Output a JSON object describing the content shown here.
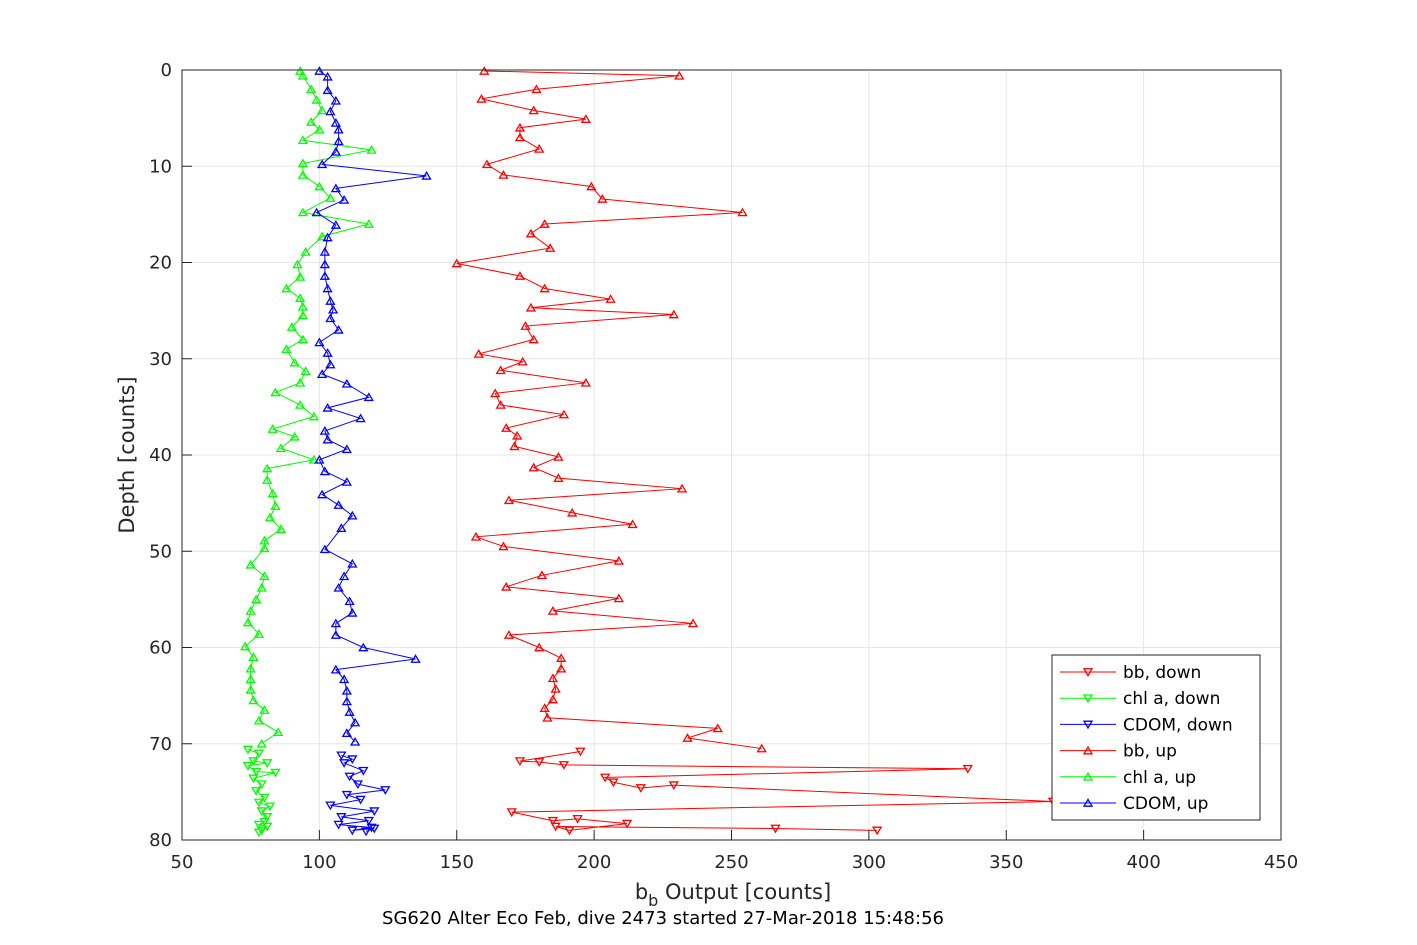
{
  "chart_data": {
    "type": "line",
    "title": "SG620 Alter Eco Feb, dive 2473 started 27-Mar-2018 15:48:56",
    "xlabel_main": "b",
    "xlabel_sub": "b",
    "xlabel_rest": " Output [counts]",
    "ylabel": "Depth [counts]",
    "xlim": [
      50,
      450
    ],
    "ylim": [
      0,
      80
    ],
    "y_reversed": true,
    "grid": true,
    "x_ticks": [
      "50",
      "100",
      "150",
      "200",
      "250",
      "300",
      "350",
      "400",
      "450"
    ],
    "y_ticks": [
      "0",
      "10",
      "20",
      "30",
      "40",
      "50",
      "60",
      "70",
      "80"
    ],
    "legend_position": "lower-right",
    "series": [
      {
        "name": "bb, down",
        "color": "#ff0000",
        "marker": "triangle-down",
        "points": [
          [
            195,
            70.8
          ],
          [
            173,
            71.8
          ],
          [
            180,
            71.9
          ],
          [
            189,
            72.2
          ],
          [
            336,
            72.6
          ],
          [
            204,
            73.5
          ],
          [
            207,
            74.0
          ],
          [
            217,
            74.6
          ],
          [
            229,
            74.3
          ],
          [
            367,
            76.0
          ],
          [
            170,
            77.1
          ],
          [
            185,
            78.0
          ],
          [
            194,
            77.8
          ],
          [
            212,
            78.3
          ],
          [
            191,
            79.0
          ],
          [
            186,
            78.6
          ],
          [
            266,
            78.8
          ],
          [
            303,
            79.0
          ]
        ]
      },
      {
        "name": "chl a, down",
        "color": "#00ff00",
        "marker": "triangle-down",
        "points": [
          [
            74,
            70.6
          ],
          [
            78,
            71.0
          ],
          [
            76,
            71.8
          ],
          [
            81,
            72.0
          ],
          [
            74,
            72.3
          ],
          [
            77,
            72.9
          ],
          [
            84,
            73.0
          ],
          [
            76,
            73.6
          ],
          [
            79,
            74.2
          ],
          [
            77,
            74.9
          ],
          [
            80,
            75.6
          ],
          [
            78,
            76.1
          ],
          [
            82,
            76.5
          ],
          [
            79,
            77.0
          ],
          [
            81,
            77.6
          ],
          [
            80,
            78.1
          ],
          [
            78,
            78.4
          ],
          [
            81,
            78.6
          ],
          [
            79,
            79.0
          ],
          [
            78,
            79.2
          ]
        ]
      },
      {
        "name": "CDOM, down",
        "color": "#0000ff",
        "marker": "triangle-down",
        "points": [
          [
            108,
            71.2
          ],
          [
            112,
            71.6
          ],
          [
            109,
            72.0
          ],
          [
            116,
            72.8
          ],
          [
            111,
            73.4
          ],
          [
            114,
            74.2
          ],
          [
            124,
            74.8
          ],
          [
            110,
            75.3
          ],
          [
            115,
            75.8
          ],
          [
            104,
            76.4
          ],
          [
            120,
            77.0
          ],
          [
            108,
            77.6
          ],
          [
            118,
            78.0
          ],
          [
            107,
            78.4
          ],
          [
            119,
            78.7
          ],
          [
            112,
            79.0
          ],
          [
            120,
            78.8
          ],
          [
            117,
            79.1
          ]
        ]
      },
      {
        "name": "bb, up",
        "color": "#ff0000",
        "marker": "triangle-up",
        "points": [
          [
            160,
            0.1
          ],
          [
            231,
            0.6
          ],
          [
            179,
            2.0
          ],
          [
            159,
            3.0
          ],
          [
            178,
            4.2
          ],
          [
            197,
            5.1
          ],
          [
            173,
            6.0
          ],
          [
            173,
            7.0
          ],
          [
            180,
            8.2
          ],
          [
            161,
            9.8
          ],
          [
            167,
            10.9
          ],
          [
            199,
            12.1
          ],
          [
            203,
            13.4
          ],
          [
            254,
            14.8
          ],
          [
            182,
            16.0
          ],
          [
            177,
            17.0
          ],
          [
            184,
            18.5
          ],
          [
            150,
            20.1
          ],
          [
            173,
            21.4
          ],
          [
            182,
            22.7
          ],
          [
            206,
            23.8
          ],
          [
            177,
            24.7
          ],
          [
            229,
            25.4
          ],
          [
            175,
            26.6
          ],
          [
            178,
            28.0
          ],
          [
            158,
            29.5
          ],
          [
            174,
            30.3
          ],
          [
            166,
            31.2
          ],
          [
            197,
            32.5
          ],
          [
            164,
            33.6
          ],
          [
            166,
            34.8
          ],
          [
            189,
            35.8
          ],
          [
            168,
            37.2
          ],
          [
            172,
            38.0
          ],
          [
            171,
            39.1
          ],
          [
            187,
            40.2
          ],
          [
            178,
            41.3
          ],
          [
            187,
            42.4
          ],
          [
            232,
            43.5
          ],
          [
            169,
            44.7
          ],
          [
            192,
            46.0
          ],
          [
            214,
            47.2
          ],
          [
            157,
            48.5
          ],
          [
            167,
            49.5
          ],
          [
            209,
            51.0
          ],
          [
            181,
            52.5
          ],
          [
            168,
            53.7
          ],
          [
            209,
            54.9
          ],
          [
            185,
            56.2
          ],
          [
            236,
            57.5
          ],
          [
            169,
            58.7
          ],
          [
            180,
            60.0
          ],
          [
            188,
            61.1
          ],
          [
            188,
            62.2
          ],
          [
            185,
            63.2
          ],
          [
            186,
            64.3
          ],
          [
            185,
            65.4
          ],
          [
            182,
            66.3
          ],
          [
            183,
            67.3
          ],
          [
            245,
            68.4
          ],
          [
            234,
            69.4
          ],
          [
            261,
            70.5
          ]
        ]
      },
      {
        "name": "chl a, up",
        "color": "#00ff00",
        "marker": "triangle-up",
        "points": [
          [
            93,
            0.1
          ],
          [
            94,
            0.6
          ],
          [
            97,
            2.0
          ],
          [
            99,
            3.1
          ],
          [
            101,
            4.2
          ],
          [
            97,
            5.4
          ],
          [
            100,
            6.2
          ],
          [
            94,
            7.3
          ],
          [
            119,
            8.3
          ],
          [
            94,
            9.7
          ],
          [
            94,
            10.9
          ],
          [
            100,
            12.1
          ],
          [
            104,
            13.3
          ],
          [
            94,
            14.8
          ],
          [
            118,
            16.0
          ],
          [
            101,
            17.3
          ],
          [
            95,
            18.9
          ],
          [
            92,
            20.2
          ],
          [
            93,
            21.5
          ],
          [
            88,
            22.7
          ],
          [
            93,
            23.7
          ],
          [
            94,
            24.6
          ],
          [
            94,
            25.5
          ],
          [
            90,
            26.7
          ],
          [
            94,
            28.0
          ],
          [
            88,
            29.0
          ],
          [
            91,
            30.4
          ],
          [
            95,
            31.3
          ],
          [
            93,
            32.5
          ],
          [
            84,
            33.5
          ],
          [
            93,
            34.8
          ],
          [
            98,
            36.0
          ],
          [
            83,
            37.3
          ],
          [
            91,
            38.1
          ],
          [
            86,
            39.3
          ],
          [
            98,
            40.5
          ],
          [
            81,
            41.4
          ],
          [
            81,
            42.6
          ],
          [
            83,
            44.0
          ],
          [
            84,
            45.3
          ],
          [
            82,
            46.5
          ],
          [
            86,
            47.7
          ],
          [
            80,
            48.9
          ],
          [
            80,
            49.7
          ],
          [
            75,
            51.4
          ],
          [
            80,
            52.6
          ],
          [
            79,
            53.8
          ],
          [
            77,
            55.0
          ],
          [
            75,
            56.2
          ],
          [
            74,
            57.4
          ],
          [
            78,
            58.6
          ],
          [
            73,
            59.9
          ],
          [
            76,
            61.0
          ],
          [
            75,
            62.2
          ],
          [
            75,
            63.3
          ],
          [
            75,
            64.4
          ],
          [
            76,
            65.5
          ],
          [
            80,
            66.5
          ],
          [
            78,
            67.6
          ],
          [
            85,
            68.8
          ],
          [
            79,
            70.0
          ]
        ]
      },
      {
        "name": "CDOM, up",
        "color": "#0000ff",
        "marker": "triangle-up",
        "points": [
          [
            100,
            0.1
          ],
          [
            103,
            0.7
          ],
          [
            103,
            2.1
          ],
          [
            106,
            3.2
          ],
          [
            104,
            4.3
          ],
          [
            106,
            5.5
          ],
          [
            107,
            6.2
          ],
          [
            107,
            7.4
          ],
          [
            106,
            8.5
          ],
          [
            101,
            9.8
          ],
          [
            139,
            11.0
          ],
          [
            106,
            12.3
          ],
          [
            109,
            13.5
          ],
          [
            99,
            14.8
          ],
          [
            106,
            16.1
          ],
          [
            103,
            17.4
          ],
          [
            102,
            18.9
          ],
          [
            102,
            20.2
          ],
          [
            102,
            21.4
          ],
          [
            103,
            22.7
          ],
          [
            104,
            24.0
          ],
          [
            105,
            24.9
          ],
          [
            104,
            25.8
          ],
          [
            107,
            27.0
          ],
          [
            100,
            28.3
          ],
          [
            103,
            29.4
          ],
          [
            104,
            30.6
          ],
          [
            101,
            31.6
          ],
          [
            110,
            32.6
          ],
          [
            118,
            34.0
          ],
          [
            103,
            35.1
          ],
          [
            115,
            36.2
          ],
          [
            102,
            37.5
          ],
          [
            103,
            38.4
          ],
          [
            110,
            39.4
          ],
          [
            100,
            40.5
          ],
          [
            102,
            41.7
          ],
          [
            110,
            42.8
          ],
          [
            101,
            44.1
          ],
          [
            107,
            45.2
          ],
          [
            112,
            46.3
          ],
          [
            108,
            47.6
          ],
          [
            102,
            49.8
          ],
          [
            112,
            51.3
          ],
          [
            109,
            52.6
          ],
          [
            107,
            53.8
          ],
          [
            111,
            55.2
          ],
          [
            112,
            56.4
          ],
          [
            106,
            57.5
          ],
          [
            106,
            58.7
          ],
          [
            116,
            60.0
          ],
          [
            135,
            61.2
          ],
          [
            106,
            62.3
          ],
          [
            109,
            63.3
          ],
          [
            110,
            64.5
          ],
          [
            110,
            65.6
          ],
          [
            111,
            66.7
          ],
          [
            113,
            67.8
          ],
          [
            110,
            68.9
          ],
          [
            113,
            69.8
          ]
        ]
      }
    ]
  }
}
